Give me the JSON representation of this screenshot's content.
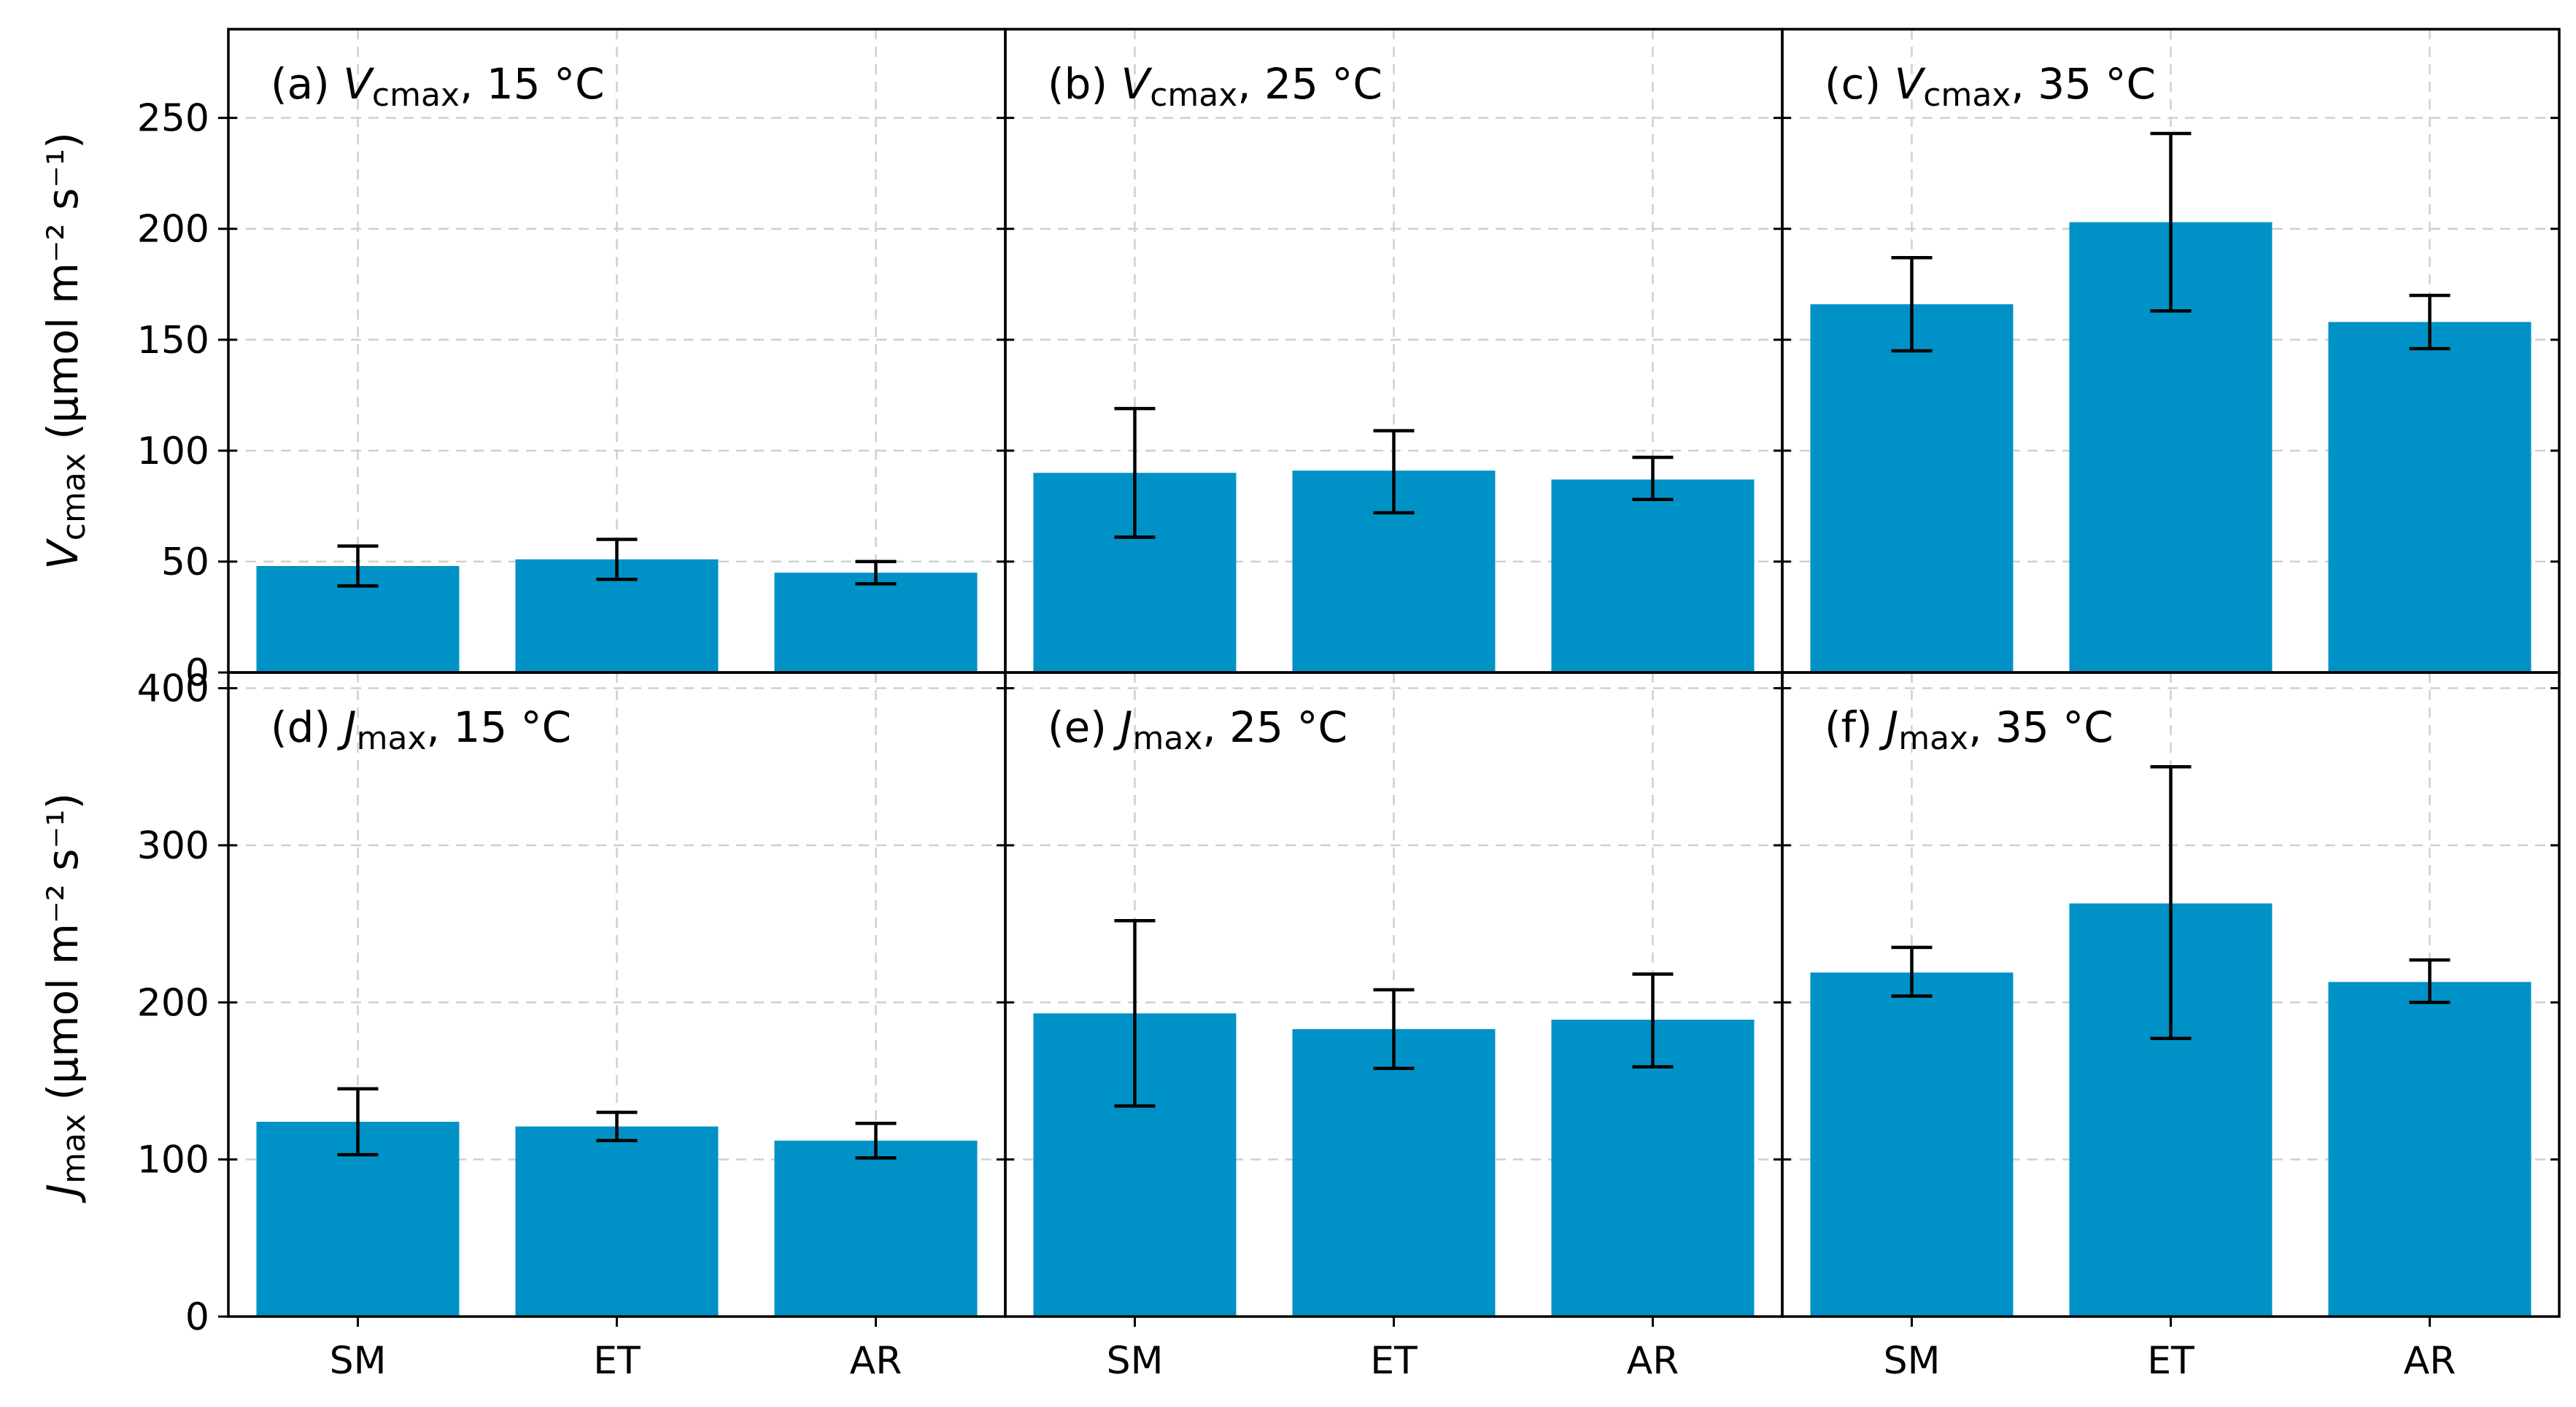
{
  "chart_data": {
    "type": "bar",
    "categories": [
      "SM",
      "ET",
      "AR"
    ],
    "color": "#0092C6",
    "error_color": "#000000",
    "grid": true,
    "rows": [
      {
        "name": "Vcmax",
        "ylabel": {
          "main": "V",
          "sub": "cmax",
          "unit": " (μmol m⁻² s⁻¹)"
        },
        "ylim": [
          0,
          290
        ],
        "yticks": [
          0,
          50,
          100,
          150,
          200,
          250
        ]
      },
      {
        "name": "Jmax",
        "ylabel": {
          "main": "J",
          "sub": "max",
          "unit": " (μmol m⁻² s⁻¹)"
        },
        "ylim": [
          0,
          410
        ],
        "yticks": [
          0,
          100,
          200,
          300,
          400
        ]
      }
    ],
    "panels": [
      {
        "id": "a",
        "row": 0,
        "col": 0,
        "label": {
          "prefix": "(a) ",
          "var": "V",
          "sub": "cmax",
          "suffix": ", 15 °C"
        },
        "values": [
          48,
          51,
          45
        ],
        "err_low": [
          39,
          42,
          40
        ],
        "err_high": [
          57,
          60,
          50
        ]
      },
      {
        "id": "b",
        "row": 0,
        "col": 1,
        "label": {
          "prefix": "(b) ",
          "var": "V",
          "sub": "cmax",
          "suffix": ", 25 °C"
        },
        "values": [
          90,
          91,
          87
        ],
        "err_low": [
          61,
          72,
          78
        ],
        "err_high": [
          119,
          109,
          97
        ]
      },
      {
        "id": "c",
        "row": 0,
        "col": 2,
        "label": {
          "prefix": "(c) ",
          "var": "V",
          "sub": "cmax",
          "suffix": ", 35 °C"
        },
        "values": [
          166,
          203,
          158
        ],
        "err_low": [
          145,
          163,
          146
        ],
        "err_high": [
          187,
          243,
          170
        ]
      },
      {
        "id": "d",
        "row": 1,
        "col": 0,
        "label": {
          "prefix": "(d) ",
          "var": "J",
          "sub": "max",
          "suffix": ", 15 °C"
        },
        "values": [
          124,
          121,
          112
        ],
        "err_low": [
          103,
          112,
          101
        ],
        "err_high": [
          145,
          130,
          123
        ]
      },
      {
        "id": "e",
        "row": 1,
        "col": 1,
        "label": {
          "prefix": "(e) ",
          "var": "J",
          "sub": "max",
          "suffix": ", 25 °C"
        },
        "values": [
          193,
          183,
          189
        ],
        "err_low": [
          134,
          158,
          159
        ],
        "err_high": [
          252,
          208,
          218
        ]
      },
      {
        "id": "f",
        "row": 1,
        "col": 2,
        "label": {
          "prefix": "(f) ",
          "var": "J",
          "sub": "max",
          "suffix": ", 35 °C"
        },
        "values": [
          219,
          263,
          213
        ],
        "err_low": [
          204,
          177,
          200
        ],
        "err_high": [
          235,
          350,
          227
        ]
      }
    ]
  }
}
